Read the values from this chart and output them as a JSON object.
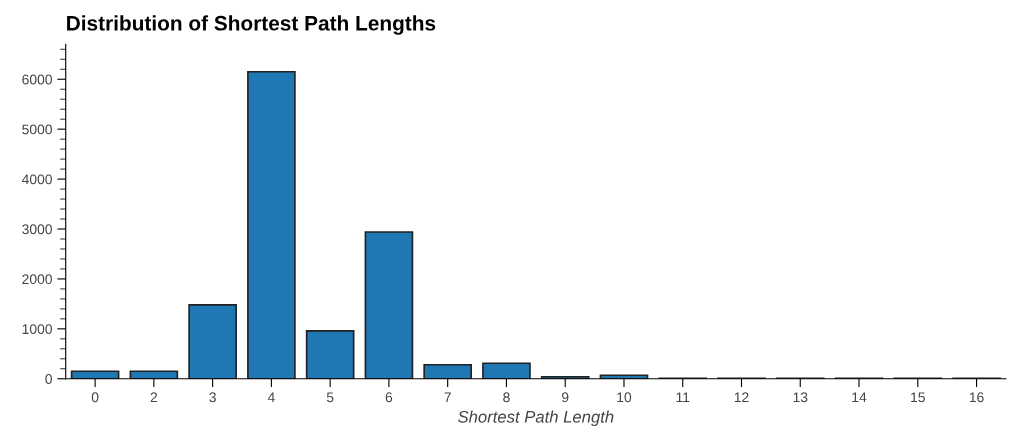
{
  "chart_data": {
    "type": "bar",
    "title": "Distribution of Shortest Path Lengths",
    "xlabel": "Shortest Path Length",
    "categories": [
      "0",
      "2",
      "3",
      "4",
      "5",
      "6",
      "7",
      "8",
      "9",
      "10",
      "11",
      "12",
      "13",
      "14",
      "15",
      "16"
    ],
    "values": [
      150,
      150,
      1480,
      6150,
      960,
      2940,
      280,
      310,
      40,
      70,
      10,
      10,
      10,
      10,
      10,
      10
    ],
    "color": "#1f77b4",
    "ylim": [
      0,
      6700
    ],
    "yticks": [
      0,
      1000,
      2000,
      3000,
      4000,
      5000,
      6000
    ],
    "grid": false
  }
}
